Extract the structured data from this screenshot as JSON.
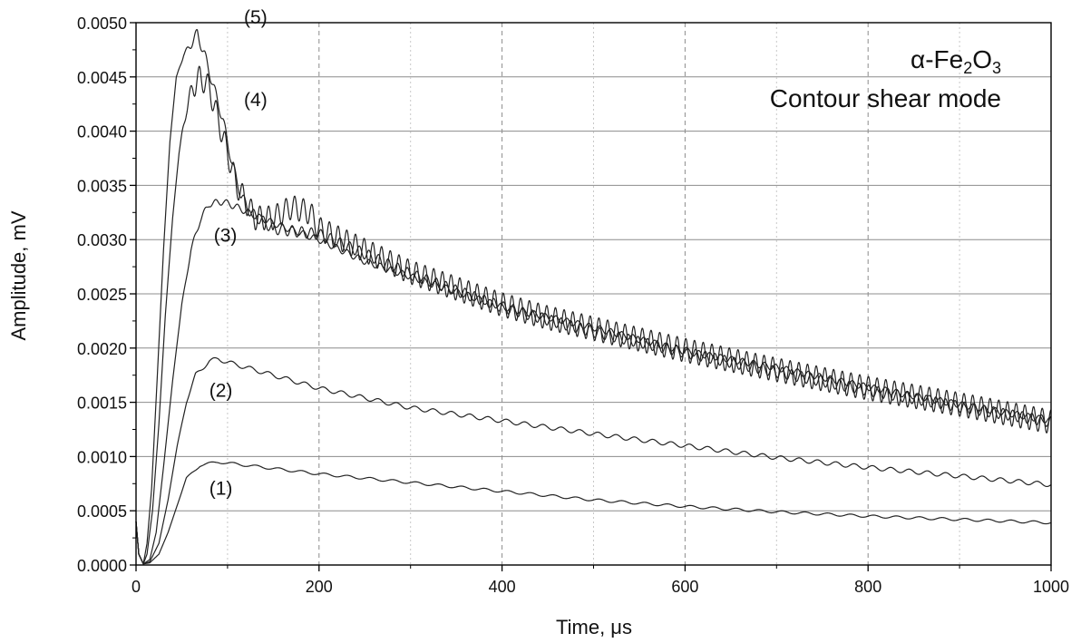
{
  "chart_data": {
    "type": "line",
    "title": "",
    "annotation": {
      "material_base": "α-Fe",
      "sub1": "2",
      "mid": "O",
      "sub2": "3",
      "mode": "Contour shear mode"
    },
    "xlabel": "Time, μs",
    "ylabel": "Amplitude, mV",
    "xlim": [
      0,
      1000
    ],
    "ylim": [
      0,
      0.005
    ],
    "x_ticks": [
      0,
      200,
      400,
      600,
      800,
      1000
    ],
    "x_tick_labels": [
      "0",
      "200",
      "400",
      "600",
      "800",
      "1000"
    ],
    "y_ticks": [
      0,
      0.0005,
      0.001,
      0.0015,
      0.002,
      0.0025,
      0.003,
      0.0035,
      0.004,
      0.0045,
      0.005
    ],
    "y_tick_labels": [
      "0.0000",
      "0.0005",
      "0.0010",
      "0.0015",
      "0.0020",
      "0.0025",
      "0.0030",
      "0.0035",
      "0.0040",
      "0.0045",
      "0.0050"
    ],
    "grid": true,
    "legend": "none",
    "series": [
      {
        "label": "(1)",
        "label_pos": [
          80,
          0.00065
        ],
        "color": "#222222",
        "points": [
          [
            0,
            0.0004
          ],
          [
            3,
            0.0001
          ],
          [
            8,
            1e-05
          ],
          [
            15,
            2e-05
          ],
          [
            25,
            0.0001
          ],
          [
            35,
            0.0003
          ],
          [
            45,
            0.00055
          ],
          [
            55,
            0.0008
          ],
          [
            70,
            0.00092
          ],
          [
            90,
            0.00095
          ],
          [
            110,
            0.00093
          ],
          [
            150,
            0.00089
          ],
          [
            200,
            0.00084
          ],
          [
            300,
            0.00076
          ],
          [
            400,
            0.00068
          ],
          [
            500,
            0.0006
          ],
          [
            600,
            0.00054
          ],
          [
            700,
            0.00049
          ],
          [
            800,
            0.00045
          ],
          [
            900,
            0.00042
          ],
          [
            1000,
            0.00039
          ]
        ],
        "ripple": [
          1.2e-05,
          25
        ]
      },
      {
        "label": "(2)",
        "label_pos": [
          80,
          0.00155
        ],
        "color": "#222222",
        "points": [
          [
            0,
            0.0004
          ],
          [
            3,
            0.0001
          ],
          [
            8,
            1e-05
          ],
          [
            15,
            3e-05
          ],
          [
            25,
            0.0002
          ],
          [
            35,
            0.0006
          ],
          [
            45,
            0.0011
          ],
          [
            55,
            0.0015
          ],
          [
            65,
            0.00175
          ],
          [
            80,
            0.00188
          ],
          [
            90,
            0.0019
          ],
          [
            100,
            0.00187
          ],
          [
            150,
            0.00175
          ],
          [
            200,
            0.00163
          ],
          [
            300,
            0.00145
          ],
          [
            400,
            0.00133
          ],
          [
            500,
            0.00121
          ],
          [
            600,
            0.0011
          ],
          [
            700,
            0.00099
          ],
          [
            800,
            0.0009
          ],
          [
            900,
            0.00082
          ],
          [
            1000,
            0.00074
          ]
        ],
        "ripple": [
          2e-05,
          20
        ]
      },
      {
        "label": "(3)",
        "label_pos": [
          85,
          0.00298
        ],
        "color": "#222222",
        "points": [
          [
            0,
            0.0004
          ],
          [
            3,
            0.0001
          ],
          [
            8,
            1e-05
          ],
          [
            15,
            5e-05
          ],
          [
            22,
            0.0003
          ],
          [
            30,
            0.0009
          ],
          [
            40,
            0.0017
          ],
          [
            50,
            0.0024
          ],
          [
            60,
            0.0029
          ],
          [
            70,
            0.00318
          ],
          [
            80,
            0.00333
          ],
          [
            95,
            0.00335
          ],
          [
            110,
            0.0033
          ],
          [
            130,
            0.00322
          ],
          [
            160,
            0.00312
          ],
          [
            200,
            0.003
          ],
          [
            250,
            0.0028
          ],
          [
            300,
            0.00266
          ],
          [
            350,
            0.00252
          ],
          [
            400,
            0.00238
          ],
          [
            500,
            0.00219
          ],
          [
            600,
            0.00197
          ],
          [
            700,
            0.00182
          ],
          [
            800,
            0.00164
          ],
          [
            900,
            0.00148
          ],
          [
            1000,
            0.00133
          ]
        ],
        "ripple": [
          3e-05,
          12
        ]
      },
      {
        "label": "(4)",
        "label_pos": [
          118,
          0.00423
        ],
        "color": "#222222",
        "points": [
          [
            0,
            0.0004
          ],
          [
            3,
            0.0001
          ],
          [
            8,
            1e-05
          ],
          [
            12,
            0.0001
          ],
          [
            18,
            0.0005
          ],
          [
            25,
            0.0013
          ],
          [
            32,
            0.0023
          ],
          [
            40,
            0.0032
          ],
          [
            47,
            0.0038
          ],
          [
            55,
            0.0042
          ],
          [
            62,
            0.0044
          ],
          [
            70,
            0.0045
          ],
          [
            80,
            0.0044
          ],
          [
            90,
            0.0041
          ],
          [
            100,
            0.0038
          ],
          [
            110,
            0.0035
          ],
          [
            120,
            0.00335
          ],
          [
            130,
            0.0032
          ],
          [
            150,
            0.0032
          ],
          [
            170,
            0.0033
          ],
          [
            190,
            0.00325
          ],
          [
            200,
            0.0031
          ],
          [
            250,
            0.0029
          ],
          [
            300,
            0.0027
          ],
          [
            350,
            0.00255
          ],
          [
            400,
            0.0024
          ],
          [
            450,
            0.00228
          ],
          [
            500,
            0.00218
          ],
          [
            600,
            0.00198
          ],
          [
            700,
            0.0018
          ],
          [
            800,
            0.00163
          ],
          [
            900,
            0.00148
          ],
          [
            1000,
            0.00132
          ]
        ],
        "ripple": [
          0.00011,
          9.5
        ]
      },
      {
        "label": "(5)",
        "label_pos": [
          118,
          0.00499
        ],
        "color": "#222222",
        "points": [
          [
            0,
            0.0004
          ],
          [
            3,
            0.0001
          ],
          [
            8,
            1e-05
          ],
          [
            12,
            0.0002
          ],
          [
            17,
            0.0007
          ],
          [
            23,
            0.0017
          ],
          [
            30,
            0.0029
          ],
          [
            37,
            0.0039
          ],
          [
            44,
            0.0045
          ],
          [
            52,
            0.0047
          ],
          [
            60,
            0.0048
          ],
          [
            67,
            0.0049
          ],
          [
            75,
            0.0047
          ],
          [
            85,
            0.0044
          ],
          [
            95,
            0.0041
          ],
          [
            105,
            0.0037
          ],
          [
            115,
            0.0034
          ],
          [
            125,
            0.00325
          ],
          [
            150,
            0.0031
          ],
          [
            200,
            0.00305
          ],
          [
            250,
            0.00287
          ],
          [
            300,
            0.00268
          ],
          [
            350,
            0.00253
          ],
          [
            400,
            0.00238
          ],
          [
            450,
            0.00226
          ],
          [
            500,
            0.00215
          ],
          [
            600,
            0.00196
          ],
          [
            700,
            0.00178
          ],
          [
            800,
            0.00161
          ],
          [
            900,
            0.00146
          ],
          [
            1000,
            0.00132
          ]
        ],
        "ripple": [
          5e-05,
          10.5
        ]
      }
    ]
  }
}
